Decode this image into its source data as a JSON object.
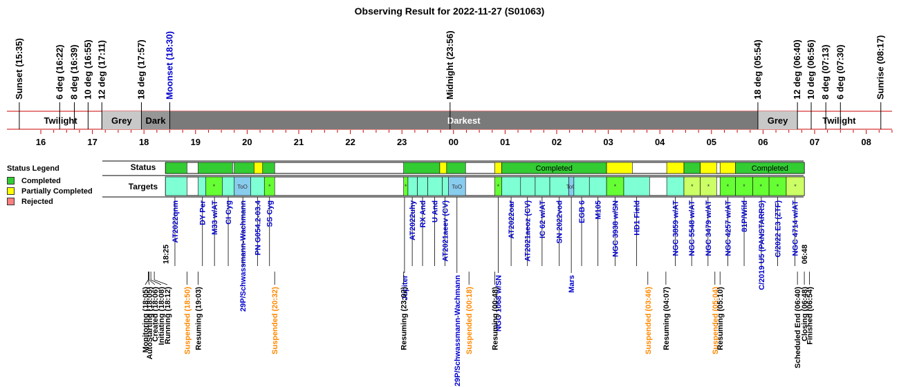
{
  "chart_data": {
    "type": "timeline",
    "title": "Observing Result for 2022-11-27 (S01063)",
    "x_range_hours": [
      15.35,
      32.5
    ],
    "twilight_marks": [
      {
        "label": "Sunset (15:35)",
        "t": "15:35",
        "color": "#000000"
      },
      {
        "label": "6 deg (16:22)",
        "t": "16:22",
        "color": "#000000"
      },
      {
        "label": "8 deg (16:39)",
        "t": "16:39",
        "color": "#000000"
      },
      {
        "label": "10 deg (16:55)",
        "t": "16:55",
        "color": "#000000"
      },
      {
        "label": "12 deg (17:11)",
        "t": "17:11",
        "color": "#000000"
      },
      {
        "label": "18 deg (17:57)",
        "t": "17:57",
        "color": "#000000"
      },
      {
        "label": "Moonset (18:30)",
        "t": "18:30",
        "color": "#0000cc"
      },
      {
        "label": "Midnight (23:56)",
        "t": "23:56",
        "color": "#000000"
      },
      {
        "label": "18 deg (05:54)",
        "t": "29:54",
        "color": "#000000"
      },
      {
        "label": "12 deg (06:40)",
        "t": "30:40",
        "color": "#000000"
      },
      {
        "label": "10 deg (06:56)",
        "t": "30:56",
        "color": "#000000"
      },
      {
        "label": "8 deg (07:13)",
        "t": "31:13",
        "color": "#000000"
      },
      {
        "label": "6 deg (07:30)",
        "t": "31:30",
        "color": "#000000"
      },
      {
        "label": "Sunrise (08:17)",
        "t": "32:17",
        "color": "#000000"
      }
    ],
    "sky_bands": [
      {
        "label": "Twilight",
        "start": "15:35",
        "end": "17:11",
        "color": "#ffffff"
      },
      {
        "label": "Grey",
        "start": "17:11",
        "end": "17:57",
        "color": "#c8c8c8"
      },
      {
        "label": "Dark",
        "start": "17:57",
        "end": "18:30",
        "color": "#969696"
      },
      {
        "label": "Darkest",
        "start": "18:30",
        "end": "29:54",
        "color": "#7a7a7a"
      },
      {
        "label": "Grey",
        "start": "29:54",
        "end": "30:40",
        "color": "#c8c8c8"
      },
      {
        "label": "Twilight",
        "start": "30:40",
        "end": "32:17",
        "color": "#ffffff"
      }
    ],
    "hour_ticks": [
      "16",
      "17",
      "18",
      "19",
      "20",
      "21",
      "22",
      "23",
      "00",
      "01",
      "02",
      "03",
      "04",
      "05",
      "06",
      "07",
      "08"
    ],
    "legend": {
      "title": "Status Legend",
      "items": [
        {
          "label": "Completed",
          "color": "#33cc33"
        },
        {
          "label": "Partially Completed",
          "color": "#ffff00"
        },
        {
          "label": "Rejected",
          "color": "#ff7f7f"
        }
      ]
    },
    "row_labels": {
      "status": "Status",
      "targets": "Targets"
    },
    "status_segments": [
      {
        "start": "18:25",
        "end": "18:50",
        "status": "completed",
        "label": ""
      },
      {
        "start": "19:03",
        "end": "19:43",
        "status": "completed",
        "label": ""
      },
      {
        "start": "19:45",
        "end": "20:08",
        "status": "completed",
        "label": ""
      },
      {
        "start": "20:08",
        "end": "20:18",
        "status": "partial",
        "label": ""
      },
      {
        "start": "20:18",
        "end": "20:32",
        "status": "completed",
        "label": ""
      },
      {
        "start": "23:02",
        "end": "23:44",
        "status": "completed",
        "label": ""
      },
      {
        "start": "23:44",
        "end": "23:52",
        "status": "partial",
        "label": ""
      },
      {
        "start": "23:52",
        "end": "24:14",
        "status": "completed",
        "label": ""
      },
      {
        "start": "24:48",
        "end": "24:56",
        "status": "partial",
        "label": ""
      },
      {
        "start": "24:56",
        "end": "26:58",
        "status": "completed",
        "label": "Completed"
      },
      {
        "start": "26:58",
        "end": "27:28",
        "status": "partial",
        "label": ""
      },
      {
        "start": "28:08",
        "end": "28:28",
        "status": "partial",
        "label": ""
      },
      {
        "start": "28:28",
        "end": "28:47",
        "status": "completed",
        "label": ""
      },
      {
        "start": "28:47",
        "end": "29:06",
        "status": "partial",
        "label": ""
      },
      {
        "start": "29:10",
        "end": "29:28",
        "status": "partial",
        "label": ""
      },
      {
        "start": "29:28",
        "end": "30:48",
        "status": "completed",
        "label": "Completed"
      }
    ],
    "target_blocks": [
      {
        "start": "18:25",
        "end": "18:50",
        "color": "#7fffd4",
        "tag": ""
      },
      {
        "start": "19:03",
        "end": "19:12",
        "color": "#7fffd4",
        "tag": ""
      },
      {
        "start": "19:12",
        "end": "19:31",
        "color": "#66ff33",
        "tag": "*"
      },
      {
        "start": "19:31",
        "end": "19:45",
        "color": "#7fffd4",
        "tag": ""
      },
      {
        "start": "19:45",
        "end": "20:04",
        "color": "#88ccee",
        "tag": "ToO"
      },
      {
        "start": "20:04",
        "end": "20:20",
        "color": "#7fffd4",
        "tag": ""
      },
      {
        "start": "20:20",
        "end": "20:32",
        "color": "#66ff33",
        "tag": "*"
      },
      {
        "start": "23:02",
        "end": "23:07",
        "color": "#66ff33",
        "tag": "*"
      },
      {
        "start": "23:07",
        "end": "23:18",
        "color": "#7fffd4",
        "tag": ""
      },
      {
        "start": "23:18",
        "end": "23:30",
        "color": "#7fffd4",
        "tag": ""
      },
      {
        "start": "23:30",
        "end": "23:47",
        "color": "#7fffd4",
        "tag": ""
      },
      {
        "start": "23:47",
        "end": "23:54",
        "color": "#7fffd4",
        "tag": ""
      },
      {
        "start": "23:54",
        "end": "24:14",
        "color": "#88ccee",
        "tag": "ToO"
      },
      {
        "start": "24:48",
        "end": "24:56",
        "color": "#66ff33",
        "tag": "*"
      },
      {
        "start": "24:56",
        "end": "25:18",
        "color": "#7fffd4",
        "tag": ""
      },
      {
        "start": "25:18",
        "end": "25:35",
        "color": "#7fffd4",
        "tag": ""
      },
      {
        "start": "25:35",
        "end": "25:52",
        "color": "#7fffd4",
        "tag": ""
      },
      {
        "start": "25:52",
        "end": "26:14",
        "color": "#7fffd4",
        "tag": ""
      },
      {
        "start": "26:14",
        "end": "26:20",
        "color": "#88ccee",
        "tag": "ToO"
      },
      {
        "start": "26:20",
        "end": "26:38",
        "color": "#7fffd4",
        "tag": ""
      },
      {
        "start": "26:38",
        "end": "26:58",
        "color": "#7fffd4",
        "tag": ""
      },
      {
        "start": "26:58",
        "end": "27:18",
        "color": "#66ff33",
        "tag": "*"
      },
      {
        "start": "27:18",
        "end": "27:48",
        "color": "#7fffd4",
        "tag": ""
      },
      {
        "start": "28:08",
        "end": "28:28",
        "color": "#7fffd4",
        "tag": ""
      },
      {
        "start": "28:28",
        "end": "28:47",
        "color": "#ccff66",
        "tag": "*"
      },
      {
        "start": "28:47",
        "end": "29:06",
        "color": "#ccff66",
        "tag": "*"
      },
      {
        "start": "29:10",
        "end": "29:28",
        "color": "#66ff33",
        "tag": "*"
      },
      {
        "start": "29:28",
        "end": "29:48",
        "color": "#66ff33",
        "tag": "*"
      },
      {
        "start": "29:48",
        "end": "30:07",
        "color": "#66ff33",
        "tag": "*"
      },
      {
        "start": "30:07",
        "end": "30:27",
        "color": "#66ff33",
        "tag": "*"
      },
      {
        "start": "30:27",
        "end": "30:48",
        "color": "#ccff66",
        "tag": "*"
      }
    ],
    "target_labels": [
      {
        "t": "18:36",
        "text": "AT2022qnm",
        "color": "#0000cc",
        "row": 0
      },
      {
        "t": "19:08",
        "text": "DY Per",
        "color": "#0000cc",
        "row": 0
      },
      {
        "t": "19:22",
        "text": "M33 w/AT",
        "color": "#0000cc",
        "row": 0
      },
      {
        "t": "19:38",
        "text": "CI Cyg",
        "color": "#0000cc",
        "row": 0
      },
      {
        "t": "19:55",
        "text": "29P/Schwassmann-Wachmann",
        "color": "#0000cc",
        "row": 0
      },
      {
        "t": "20:12",
        "text": "PN G054.2-03.4",
        "color": "#0000cc",
        "row": 0
      },
      {
        "t": "20:26",
        "text": "SS Cyg",
        "color": "#0000cc",
        "row": 0
      },
      {
        "t": "23:03",
        "text": "Jupiter",
        "color": "#0000cc",
        "row": 1
      },
      {
        "t": "23:12",
        "text": "AT2022uhy",
        "color": "#0000cc",
        "row": 0
      },
      {
        "t": "23:24",
        "text": "RX And",
        "color": "#0000cc",
        "row": 0
      },
      {
        "t": "23:38",
        "text": "U And",
        "color": "#0000cc",
        "row": 0
      },
      {
        "t": "23:50",
        "text": "AT2021aeev (CV)",
        "color": "#0000cc",
        "row": 0
      },
      {
        "t": "24:04",
        "text": "29P/Schwassmann-Wachmann",
        "color": "#0000cc",
        "row": 2
      },
      {
        "t": "24:52",
        "text": "NGC 1068 w/SN",
        "color": "#0000cc",
        "row": 1
      },
      {
        "t": "25:07",
        "text": "AT2022oar",
        "color": "#0000cc",
        "row": 0
      },
      {
        "t": "25:26",
        "text": "AT2021aeoz (CV)",
        "color": "#0000cc",
        "row": 0
      },
      {
        "t": "25:43",
        "text": "IC 62 w/AT",
        "color": "#0000cc",
        "row": 0
      },
      {
        "t": "26:03",
        "text": "SN 2022vod",
        "color": "#0000cc",
        "row": 0
      },
      {
        "t": "26:17",
        "text": "Mars",
        "color": "#0000cc",
        "row": 1
      },
      {
        "t": "26:29",
        "text": "EGB 6",
        "color": "#0000cc",
        "row": 0
      },
      {
        "t": "26:48",
        "text": "M105",
        "color": "#0000cc",
        "row": 0
      },
      {
        "t": "27:08",
        "text": "NGC 3938 w/SN",
        "color": "#0000cc",
        "row": 0
      },
      {
        "t": "27:33",
        "text": "HD1 Field",
        "color": "#0000cc",
        "row": 0
      },
      {
        "t": "28:18",
        "text": "NGC 3859 w/AT",
        "color": "#0000cc",
        "row": 0
      },
      {
        "t": "28:37",
        "text": "NGC 5548 w/AT",
        "color": "#0000cc",
        "row": 0
      },
      {
        "t": "28:56",
        "text": "NGC 3479 w/AT",
        "color": "#0000cc",
        "row": 0
      },
      {
        "t": "29:19",
        "text": "NGC 4257 w/AT",
        "color": "#0000cc",
        "row": 0
      },
      {
        "t": "29:38",
        "text": "81P/Wild",
        "color": "#0000cc",
        "row": 0
      },
      {
        "t": "29:58",
        "text": "C/2019 U5 (PANSTARRS)",
        "color": "#0000cc",
        "row": 0
      },
      {
        "t": "30:17",
        "text": "C/2022 E3 (ZTF)",
        "color": "#0000cc",
        "row": 0
      },
      {
        "t": "30:37",
        "text": "NGC 4714 w/AT",
        "color": "#0000cc",
        "row": 0
      }
    ],
    "time_marks": [
      {
        "t": "18:25",
        "text": "18:25"
      },
      {
        "t": "30:48",
        "text": "06:48"
      }
    ],
    "events": [
      {
        "t": "18:05",
        "text": "Monitoring (18:05)",
        "color": "#000000"
      },
      {
        "t": "18:05",
        "text": "AutoStarting (18:05)",
        "color": "#000000"
      },
      {
        "t": "18:06",
        "text": "Created (18:06)",
        "color": "#000000"
      },
      {
        "t": "18:08",
        "text": "Initiating (18:08)",
        "color": "#000000"
      },
      {
        "t": "18:12",
        "text": "Running (18:12)",
        "color": "#000000"
      },
      {
        "t": "18:50",
        "text": "Suspended (18:50)",
        "color": "#ff8800"
      },
      {
        "t": "19:03",
        "text": "Resuming (19:03)",
        "color": "#000000"
      },
      {
        "t": "20:32",
        "text": "Suspended (20:32)",
        "color": "#ff8800"
      },
      {
        "t": "23:02",
        "text": "Resuming (23:02)",
        "color": "#000000"
      },
      {
        "t": "24:18",
        "text": "Suspended (00:18)",
        "color": "#ff8800"
      },
      {
        "t": "24:48",
        "text": "Resuming (00:48)",
        "color": "#000000"
      },
      {
        "t": "27:46",
        "text": "Suspended (03:46)",
        "color": "#ff8800"
      },
      {
        "t": "28:07",
        "text": "Resuming (04:07)",
        "color": "#000000"
      },
      {
        "t": "29:04",
        "text": "Suspended (05:04)",
        "color": "#ff8800"
      },
      {
        "t": "29:10",
        "text": "Resuming (05:10)",
        "color": "#000000"
      },
      {
        "t": "30:40",
        "text": "Scheduled End (06:40)",
        "color": "#000000"
      },
      {
        "t": "30:48",
        "text": "Closing (06:48)",
        "color": "#000000"
      },
      {
        "t": "30:54",
        "text": "Finished (06:54)",
        "color": "#000000"
      }
    ]
  }
}
